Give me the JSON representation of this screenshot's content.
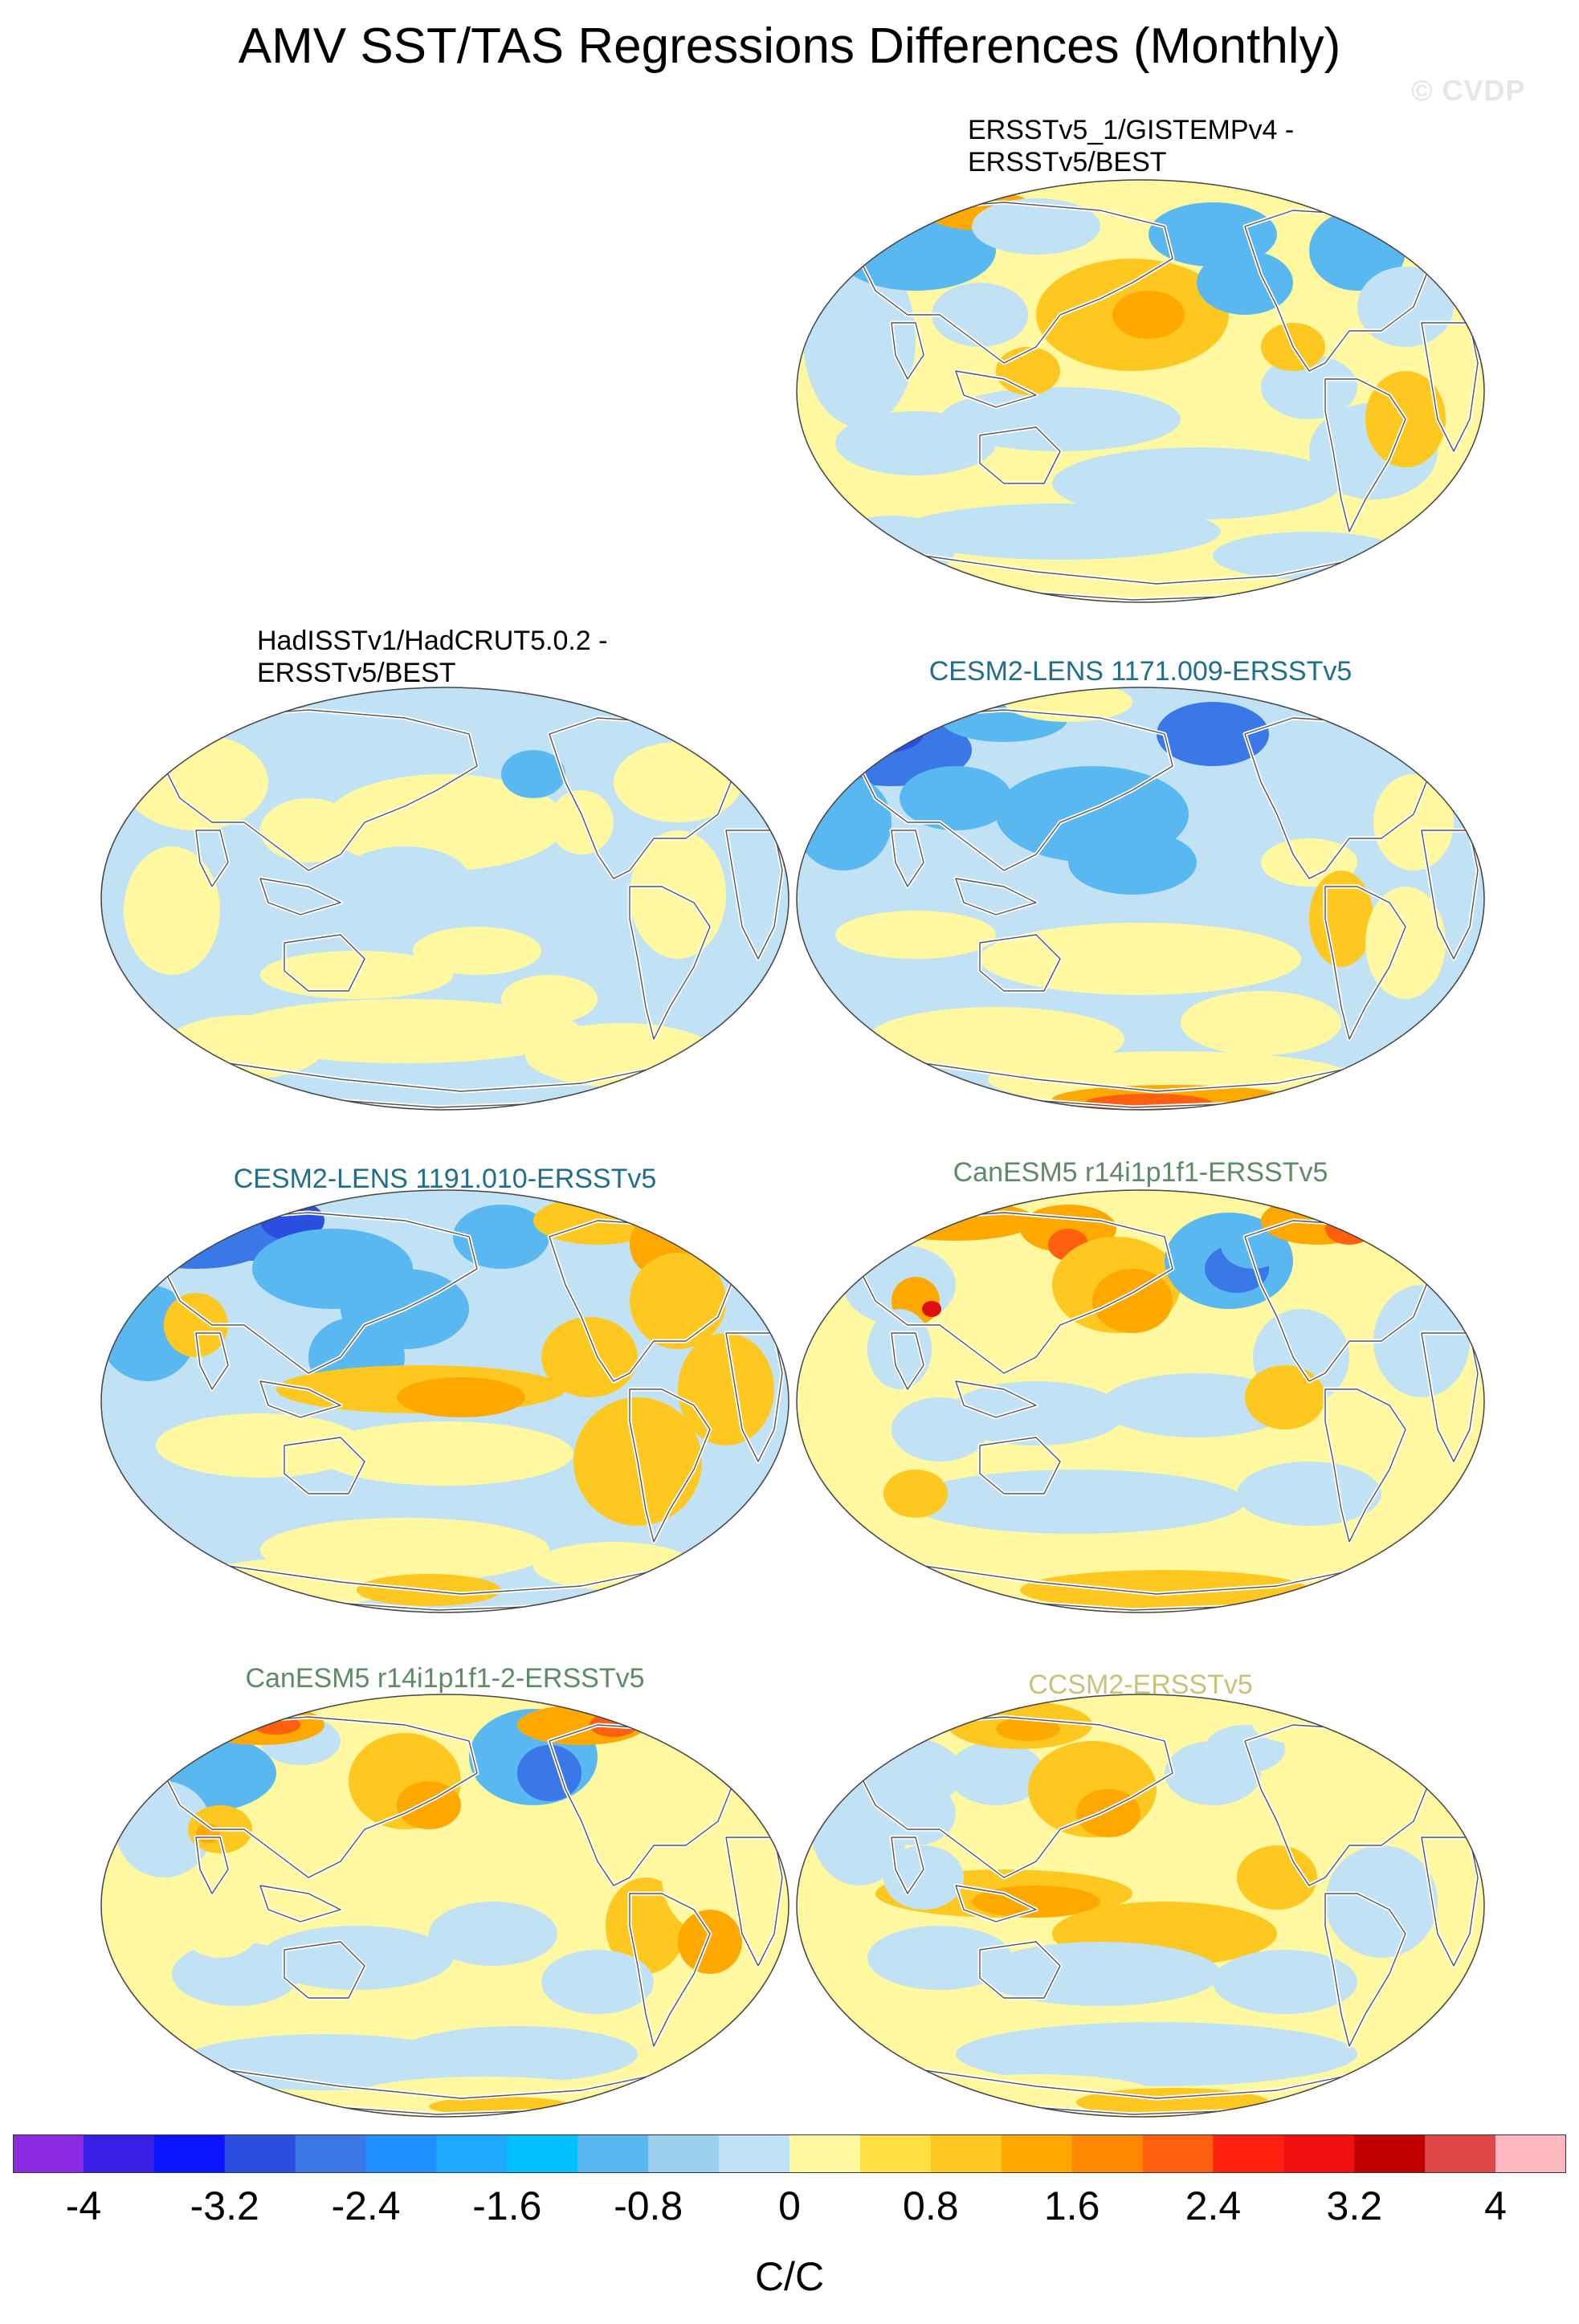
{
  "title": "AMV SST/TAS Regressions Differences (Monthly)",
  "watermark": "© CVDP",
  "panels": [
    {
      "id": "p1",
      "title_line1": "ERSSTv5_1/GISTEMPv4 -",
      "title_line2": "ERSSTv5/BEST",
      "title_color": "#000000",
      "pattern": 1
    },
    {
      "id": "p2",
      "title_line1": "HadISSTv1/HadCRUT5.0.2 -",
      "title_line2": "ERSSTv5/BEST",
      "title_color": "#000000",
      "pattern": 2
    },
    {
      "id": "p3",
      "title_line1": "CESM2-LENS 1171.009-ERSSTv5",
      "title_line2": "",
      "title_color": "#1f6f8b",
      "pattern": 3
    },
    {
      "id": "p4",
      "title_line1": "CESM2-LENS 1191.010-ERSSTv5",
      "title_line2": "",
      "title_color": "#1f6f8b",
      "pattern": 4
    },
    {
      "id": "p5",
      "title_line1": "CanESM5 r14i1p1f1-ERSSTv5",
      "title_line2": "",
      "title_color": "#5f8a67",
      "pattern": 5
    },
    {
      "id": "p6",
      "title_line1": "CanESM5 r14i1p1f1-2-ERSSTv5",
      "title_line2": "",
      "title_color": "#5f8a67",
      "pattern": 6
    },
    {
      "id": "p7",
      "title_line1": "CCSM2-ERSSTv5",
      "title_line2": "",
      "title_color": "#c8c27a",
      "pattern": 7
    }
  ],
  "colorbar": {
    "colors": [
      "#8a2be2",
      "#3a1ee6",
      "#0a14ff",
      "#2a4fe0",
      "#3a78e8",
      "#1e90ff",
      "#1ea8ff",
      "#00c0ff",
      "#5ab8f0",
      "#9ad0ee",
      "#c0e2f4",
      "#fff8a0",
      "#ffe040",
      "#ffc820",
      "#ffa800",
      "#ff8800",
      "#ff6010",
      "#ff2010",
      "#f01010",
      "#c00000",
      "#e04848",
      "#ffb8c0"
    ],
    "tick_labels": [
      "-4",
      "-3.2",
      "-2.4",
      "-1.6",
      "-0.8",
      "0",
      "0.8",
      "1.6",
      "2.4",
      "3.2",
      "4"
    ],
    "units": "C/C"
  }
}
